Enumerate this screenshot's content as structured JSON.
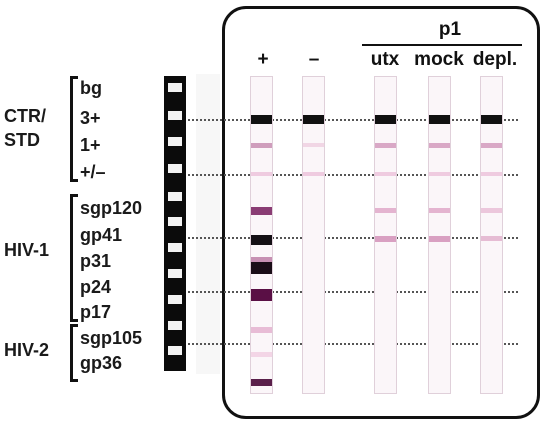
{
  "header": {
    "group": "p1",
    "lanes": [
      "+",
      "–",
      "utx",
      "mock",
      "depl."
    ]
  },
  "groups": [
    {
      "label": "CTR/\nSTD",
      "bands": [
        "bg",
        "3+",
        "1+",
        "+/–"
      ]
    },
    {
      "label": "HIV-1",
      "bands": [
        "sgp120",
        "gp41",
        "p31",
        "p24",
        "p17"
      ]
    },
    {
      "label": "HIV-2",
      "bands": [
        "sgp105",
        "gp36"
      ]
    }
  ],
  "colors": {
    "strong": "#111111",
    "purple": "#5a0f45",
    "medium": "#a36d95",
    "light": "#e8bcd6",
    "faint": "#f3d5e6"
  }
}
